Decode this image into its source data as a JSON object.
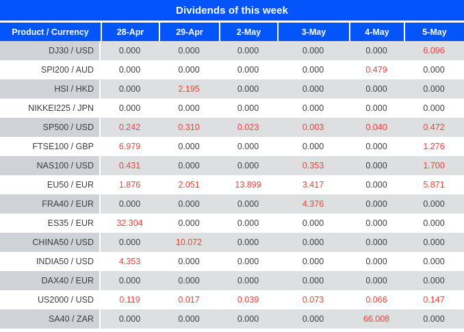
{
  "title": "Dividends of this week",
  "colors": {
    "header_bg": "#0355fb",
    "header_text": "#ffffff",
    "value_text": "#3c3c40",
    "nonzero_value_text": "#f83c3c",
    "stripe_row_product_bg": "#cfd2d6",
    "stripe_row_values_bg": "#dedfe0",
    "plain_row_bg": "#ffffff"
  },
  "table": {
    "columns": [
      "Product / Currency",
      "28-Apr",
      "29-Apr",
      "2-May",
      "3-May",
      "4-May",
      "5-May"
    ],
    "rows": [
      {
        "product": "DJ30 / USD",
        "values": [
          "0.000",
          "0.000",
          "0.000",
          "0.000",
          "0.000",
          "6.096"
        ]
      },
      {
        "product": "SPI200 / AUD",
        "values": [
          "0.000",
          "0.000",
          "0.000",
          "0.000",
          "0.479",
          "0.000"
        ]
      },
      {
        "product": "HSI / HKD",
        "values": [
          "0.000",
          "2.195",
          "0.000",
          "0.000",
          "0.000",
          "0.000"
        ]
      },
      {
        "product": "NIKKEI225 / JPN",
        "values": [
          "0.000",
          "0.000",
          "0.000",
          "0.000",
          "0.000",
          "0.000"
        ]
      },
      {
        "product": "SP500 / USD",
        "values": [
          "0.242",
          "0.310",
          "0.023",
          "0.003",
          "0.040",
          "0.472"
        ]
      },
      {
        "product": "FTSE100 / GBP",
        "values": [
          "6.979",
          "0.000",
          "0.000",
          "0.000",
          "0.000",
          "1.276"
        ]
      },
      {
        "product": "NAS100 / USD",
        "values": [
          "0.431",
          "0.000",
          "0.000",
          "0.353",
          "0.000",
          "1.700"
        ]
      },
      {
        "product": "EU50 / EUR",
        "values": [
          "1.876",
          "2.051",
          "13.899",
          "3.417",
          "0.000",
          "5.871"
        ]
      },
      {
        "product": "FRA40 / EUR",
        "values": [
          "0.000",
          "0.000",
          "0.000",
          "4.376",
          "0.000",
          "0.000"
        ]
      },
      {
        "product": "ES35 / EUR",
        "values": [
          "32.304",
          "0.000",
          "0.000",
          "0.000",
          "0.000",
          "0.000"
        ]
      },
      {
        "product": "CHINA50 / USD",
        "values": [
          "0.000",
          "10.072",
          "0.000",
          "0.000",
          "0.000",
          "0.000"
        ]
      },
      {
        "product": "INDIA50 / USD",
        "values": [
          "4.353",
          "0.000",
          "0.000",
          "0.000",
          "0.000",
          "0.000"
        ]
      },
      {
        "product": "DAX40 / EUR",
        "values": [
          "0.000",
          "0.000",
          "0.000",
          "0.000",
          "0.000",
          "0.000"
        ]
      },
      {
        "product": "US2000 / USD",
        "values": [
          "0.119",
          "0.017",
          "0.039",
          "0.073",
          "0.066",
          "0.147"
        ]
      },
      {
        "product": "SA40 / ZAR",
        "values": [
          "0.000",
          "0.000",
          "0.000",
          "0.000",
          "66.008",
          "0.000"
        ]
      }
    ]
  },
  "chart_data": {
    "type": "table",
    "title": "Dividends of this week",
    "columns": [
      "28-Apr",
      "29-Apr",
      "2-May",
      "3-May",
      "4-May",
      "5-May"
    ],
    "rows": [
      {
        "product": "DJ30 / USD",
        "values": [
          0.0,
          0.0,
          0.0,
          0.0,
          0.0,
          6.096
        ]
      },
      {
        "product": "SPI200 / AUD",
        "values": [
          0.0,
          0.0,
          0.0,
          0.0,
          0.479,
          0.0
        ]
      },
      {
        "product": "HSI / HKD",
        "values": [
          0.0,
          2.195,
          0.0,
          0.0,
          0.0,
          0.0
        ]
      },
      {
        "product": "NIKKEI225 / JPN",
        "values": [
          0.0,
          0.0,
          0.0,
          0.0,
          0.0,
          0.0
        ]
      },
      {
        "product": "SP500 / USD",
        "values": [
          0.242,
          0.31,
          0.023,
          0.003,
          0.04,
          0.472
        ]
      },
      {
        "product": "FTSE100 / GBP",
        "values": [
          6.979,
          0.0,
          0.0,
          0.0,
          0.0,
          1.276
        ]
      },
      {
        "product": "NAS100 / USD",
        "values": [
          0.431,
          0.0,
          0.0,
          0.353,
          0.0,
          1.7
        ]
      },
      {
        "product": "EU50 / EUR",
        "values": [
          1.876,
          2.051,
          13.899,
          3.417,
          0.0,
          5.871
        ]
      },
      {
        "product": "FRA40 / EUR",
        "values": [
          0.0,
          0.0,
          0.0,
          4.376,
          0.0,
          0.0
        ]
      },
      {
        "product": "ES35 / EUR",
        "values": [
          32.304,
          0.0,
          0.0,
          0.0,
          0.0,
          0.0
        ]
      },
      {
        "product": "CHINA50 / USD",
        "values": [
          0.0,
          10.072,
          0.0,
          0.0,
          0.0,
          0.0
        ]
      },
      {
        "product": "INDIA50 / USD",
        "values": [
          4.353,
          0.0,
          0.0,
          0.0,
          0.0,
          0.0
        ]
      },
      {
        "product": "DAX40 / EUR",
        "values": [
          0.0,
          0.0,
          0.0,
          0.0,
          0.0,
          0.0
        ]
      },
      {
        "product": "US2000 / USD",
        "values": [
          0.119,
          0.017,
          0.039,
          0.073,
          0.066,
          0.147
        ]
      },
      {
        "product": "SA40 / ZAR",
        "values": [
          0.0,
          0.0,
          0.0,
          0.0,
          66.008,
          0.0
        ]
      }
    ],
    "notes": "Non-zero dividend values are rendered in red; zero values in dark gray. Rows stripe gray/white starting gray."
  }
}
